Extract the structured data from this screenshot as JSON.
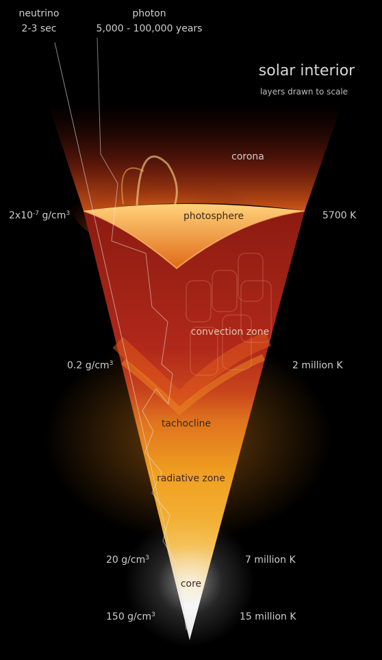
{
  "title": "solar interior",
  "subtitle": "layers drawn to scale",
  "paths": {
    "neutrino": {
      "name": "neutrino",
      "time": "2-3 sec"
    },
    "photon": {
      "name": "photon",
      "time": "5,000 - 100,000 years"
    }
  },
  "layers": {
    "corona": "corona",
    "photosphere": "photosphere",
    "convection": "convection zone",
    "tachocline": "tachocline",
    "radiative": "radiative zone",
    "core": "core"
  },
  "density": {
    "surface": {
      "base": "2x10",
      "exp": "-7",
      "unit": " g/cm",
      "unit_exp": "3"
    },
    "convection_base": {
      "base": "0.2 g/cm",
      "unit_exp": "3"
    },
    "core_edge": {
      "base": "20 g/cm",
      "unit_exp": "3"
    },
    "center": {
      "base": "150 g/cm",
      "unit_exp": "3"
    }
  },
  "temperature": {
    "surface": "5700 K",
    "convection_base": "2 million K",
    "core_edge": "7 million  K",
    "center": "15 million K"
  },
  "colors": {
    "background": "#000000",
    "convection": "#a8231a",
    "radiative": "#f0a020",
    "core": "#f4f4f4",
    "label": "#cfcfcf"
  }
}
